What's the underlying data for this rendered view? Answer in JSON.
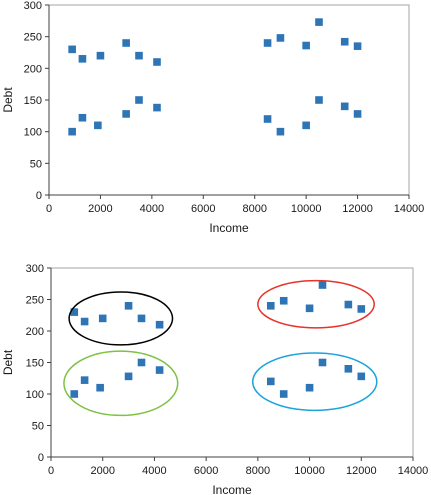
{
  "chart_data": [
    {
      "type": "scatter",
      "title": "",
      "xlabel": "Income",
      "ylabel": "Debt",
      "xlim": [
        0,
        14000
      ],
      "ylim": [
        0,
        300
      ],
      "x_ticks": [
        0,
        2000,
        4000,
        6000,
        8000,
        10000,
        12000,
        14000
      ],
      "y_ticks": [
        0,
        50,
        100,
        150,
        200,
        250,
        300
      ],
      "grid": false,
      "marker_color": "#2e75b6",
      "series": [
        {
          "points": [
            {
              "x": 900,
              "y": 230
            },
            {
              "x": 1300,
              "y": 215
            },
            {
              "x": 2000,
              "y": 220
            },
            {
              "x": 3000,
              "y": 240
            },
            {
              "x": 3500,
              "y": 220
            },
            {
              "x": 4200,
              "y": 210
            },
            {
              "x": 900,
              "y": 100
            },
            {
              "x": 1300,
              "y": 122
            },
            {
              "x": 1900,
              "y": 110
            },
            {
              "x": 3000,
              "y": 128
            },
            {
              "x": 3500,
              "y": 150
            },
            {
              "x": 4200,
              "y": 138
            },
            {
              "x": 8500,
              "y": 240
            },
            {
              "x": 9000,
              "y": 248
            },
            {
              "x": 10000,
              "y": 236
            },
            {
              "x": 10500,
              "y": 273
            },
            {
              "x": 11500,
              "y": 242
            },
            {
              "x": 12000,
              "y": 235
            },
            {
              "x": 8500,
              "y": 120
            },
            {
              "x": 9000,
              "y": 100
            },
            {
              "x": 10000,
              "y": 110
            },
            {
              "x": 10500,
              "y": 150
            },
            {
              "x": 11500,
              "y": 140
            },
            {
              "x": 12000,
              "y": 128
            }
          ]
        }
      ]
    },
    {
      "type": "scatter",
      "title": "",
      "xlabel": "Income",
      "ylabel": "Debt",
      "xlim": [
        0,
        14000
      ],
      "ylim": [
        0,
        300
      ],
      "x_ticks": [
        0,
        2000,
        4000,
        6000,
        8000,
        10000,
        12000,
        14000
      ],
      "y_ticks": [
        0,
        50,
        100,
        150,
        200,
        250,
        300
      ],
      "grid": false,
      "marker_color": "#2e75b6",
      "series": [
        {
          "points": [
            {
              "x": 900,
              "y": 230
            },
            {
              "x": 1300,
              "y": 215
            },
            {
              "x": 2000,
              "y": 220
            },
            {
              "x": 3000,
              "y": 240
            },
            {
              "x": 3500,
              "y": 220
            },
            {
              "x": 4200,
              "y": 210
            },
            {
              "x": 900,
              "y": 100
            },
            {
              "x": 1300,
              "y": 122
            },
            {
              "x": 1900,
              "y": 110
            },
            {
              "x": 3000,
              "y": 128
            },
            {
              "x": 3500,
              "y": 150
            },
            {
              "x": 4200,
              "y": 138
            },
            {
              "x": 8500,
              "y": 240
            },
            {
              "x": 9000,
              "y": 248
            },
            {
              "x": 10000,
              "y": 236
            },
            {
              "x": 10500,
              "y": 273
            },
            {
              "x": 11500,
              "y": 242
            },
            {
              "x": 12000,
              "y": 235
            },
            {
              "x": 8500,
              "y": 120
            },
            {
              "x": 9000,
              "y": 100
            },
            {
              "x": 10000,
              "y": 110
            },
            {
              "x": 10500,
              "y": 150
            },
            {
              "x": 11500,
              "y": 140
            },
            {
              "x": 12000,
              "y": 128
            }
          ]
        }
      ],
      "clusters": [
        {
          "color": "#000000",
          "x_range": [
            700,
            4700
          ],
          "y_range": [
            178,
            262
          ]
        },
        {
          "color": "#7dc242",
          "x_range": [
            500,
            4900
          ],
          "y_range": [
            66,
            168
          ]
        },
        {
          "color": "#e8312a",
          "x_range": [
            8000,
            12500
          ],
          "y_range": [
            205,
            280
          ]
        },
        {
          "color": "#1aa3dc",
          "x_range": [
            7800,
            12600
          ],
          "y_range": [
            74,
            165
          ]
        }
      ]
    }
  ]
}
